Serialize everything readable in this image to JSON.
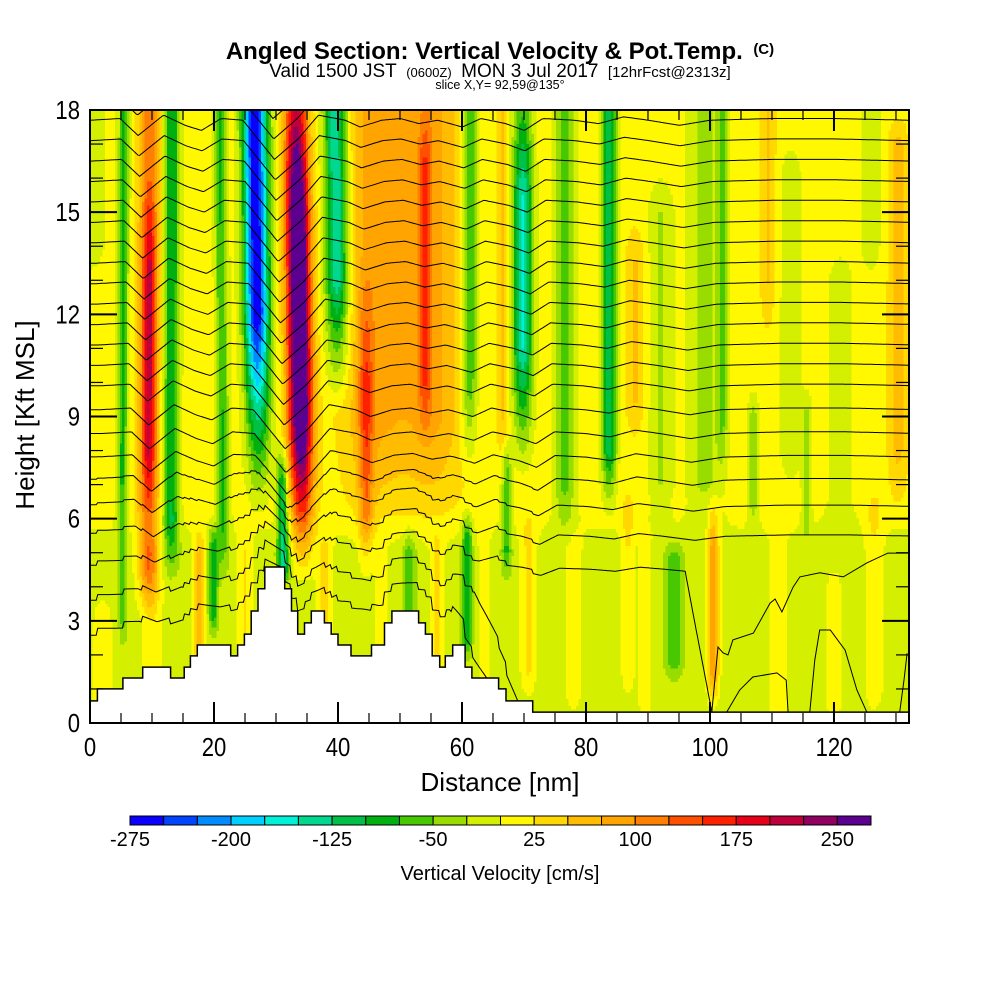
{
  "chart_data": {
    "type": "heatmap",
    "title": "Angled Section: Vertical Velocity & Pot.Temp.",
    "title_mark": "(C)",
    "subtitle": {
      "valid_local": "Valid 1500 JST",
      "valid_utc": "(0600Z)",
      "date": "MON 3 Jul 2017",
      "forecast": "[12hrFcst@2313z]"
    },
    "slice": "slice X,Y= 92,59@135°",
    "xlabel": "Distance [nm]",
    "ylabel": "Height [Kft MSL]",
    "xlim": [
      0,
      132.1
    ],
    "ylim": [
      0,
      18
    ],
    "x_ticks": [
      0,
      20,
      40,
      60,
      80,
      100,
      120
    ],
    "x_tick_labels": [
      "0",
      "20",
      "40",
      "60",
      "80",
      "100",
      "120"
    ],
    "x_minor_tick_step": 5,
    "y_ticks": [
      0,
      3,
      6,
      9,
      12,
      15,
      18
    ],
    "y_tick_labels": [
      "0",
      "3",
      "6",
      "9",
      "12",
      "15",
      "18"
    ],
    "y_minor_tick_step": 1,
    "grid": false,
    "legend": "colorbar bottom",
    "colors": {
      "terrain_fill": "#ffffff",
      "isentrope": "#000000",
      "axes": "#000000"
    },
    "colorbar": {
      "label": "Vertical Velocity [cm/s]",
      "min": -275,
      "max": 275,
      "step": 25,
      "tick_values": [
        -275,
        -200,
        -125,
        -50,
        25,
        100,
        175,
        250
      ],
      "tick_labels": [
        "-275",
        "-200",
        "-125",
        "-50",
        "25",
        "100",
        "175",
        "250"
      ],
      "colors": [
        "#0A00FF",
        "#0044FF",
        "#008CFF",
        "#00D0FF",
        "#00F0D8",
        "#00D890",
        "#00C048",
        "#00B010",
        "#48C800",
        "#98DC00",
        "#D4F000",
        "#FFF800",
        "#FFD800",
        "#FFBC00",
        "#FFA400",
        "#FF8000",
        "#FF5000",
        "#FF2000",
        "#E80018",
        "#C0003C",
        "#900060",
        "#5C0090"
      ]
    },
    "vertical_velocity": {
      "units": "cm/s",
      "background": {
        "upper_cm_s": 14,
        "lower_cm_s": -12,
        "transition_kft": [
          5,
          6.5
        ]
      },
      "feature_fields": [
        "d_top_nm",
        "d_bottom_nm",
        "half_width_nm",
        "peak_cm_s",
        "z_low_kft",
        "z_high_kft",
        "fade_below_kft",
        "fade_above_kft"
      ],
      "features": [
        [
          5.5,
          5.0,
          0.9,
          -95,
          7,
          18,
          2,
          1
        ],
        [
          9.6,
          9.3,
          1.6,
          110,
          4.5,
          18,
          1.5,
          1
        ],
        [
          9.7,
          9.4,
          1.1,
          85,
          8,
          13.5,
          2,
          2.5
        ],
        [
          13.2,
          13.0,
          1.3,
          -115,
          6,
          18,
          2,
          1
        ],
        [
          21.0,
          21.6,
          1.0,
          -90,
          6,
          18,
          2,
          1
        ],
        [
          19.9,
          19.9,
          0.8,
          -80,
          3.2,
          5.2,
          0.8,
          0.8
        ],
        [
          26.6,
          27.6,
          2.0,
          -290,
          12,
          18,
          6,
          1
        ],
        [
          30.0,
          31.6,
          0.9,
          -130,
          4.5,
          7,
          0.5,
          1.5
        ],
        [
          33.2,
          34.7,
          1.9,
          330,
          9,
          15,
          5,
          7
        ],
        [
          39.6,
          40.5,
          1.9,
          -170,
          13,
          18,
          4,
          1
        ],
        [
          46.0,
          46.0,
          5.0,
          70,
          9,
          18,
          4,
          1
        ],
        [
          55.0,
          55.0,
          5.0,
          70,
          9,
          18,
          4,
          1
        ],
        [
          54.0,
          54.0,
          1.0,
          70,
          10,
          16.5,
          2,
          2
        ],
        [
          44.4,
          44.6,
          1.2,
          85,
          6,
          10,
          2,
          4
        ],
        [
          61.3,
          61.0,
          1.3,
          -95,
          10,
          18,
          3,
          1
        ],
        [
          60.8,
          60.8,
          0.8,
          -85,
          2.5,
          5.5,
          0.8,
          1
        ],
        [
          66.5,
          66.5,
          0.8,
          40,
          9,
          18,
          2,
          1
        ],
        [
          69.8,
          69.8,
          1.6,
          -165,
          11,
          15.5,
          4,
          5
        ],
        [
          67.2,
          67.2,
          0.8,
          -70,
          5,
          7.5,
          1,
          1
        ],
        [
          76.6,
          76.6,
          1.8,
          -75,
          7,
          18,
          2,
          1
        ],
        [
          83.7,
          83.7,
          1.2,
          -130,
          8,
          18,
          2,
          1
        ],
        [
          88.0,
          88.0,
          1.5,
          40,
          9.5,
          13.5,
          1.5,
          1.5
        ],
        [
          99.2,
          99.2,
          3.0,
          -45,
          7,
          18,
          2,
          1
        ],
        [
          102.0,
          102.0,
          0.8,
          -60,
          9,
          18,
          2,
          1
        ],
        [
          109.4,
          109.4,
          1.2,
          40,
          13,
          18,
          2,
          1
        ],
        [
          130.3,
          130.3,
          1.5,
          45,
          8,
          17,
          2,
          1
        ],
        [
          92.0,
          92.0,
          2.0,
          -40,
          7,
          15,
          1.5,
          1.5
        ],
        [
          113.0,
          113.0,
          2.0,
          -30,
          8,
          16,
          1.5,
          1.5
        ],
        [
          121.0,
          121.0,
          2.5,
          -25,
          6,
          13,
          1.5,
          1.5
        ],
        [
          126.0,
          126.0,
          2.0,
          -25,
          14,
          18,
          1.5,
          1
        ],
        [
          0.0,
          0.0,
          3.0,
          -25,
          14,
          18,
          1.5,
          1
        ],
        [
          70.7,
          70.7,
          1.2,
          40,
          1.5,
          5.5,
          1,
          1
        ],
        [
          86.8,
          86.8,
          1.0,
          35,
          1.5,
          6,
          1,
          1
        ],
        [
          94.2,
          94.2,
          1.5,
          -55,
          1.8,
          4.8,
          0.8,
          0.8
        ],
        [
          100.5,
          100.5,
          0.9,
          110,
          1.5,
          5,
          1.2,
          2
        ],
        [
          107.0,
          107.0,
          0.9,
          -55,
          6.5,
          9,
          1,
          1
        ],
        [
          115.6,
          115.6,
          0.8,
          -45,
          6,
          9,
          1,
          1
        ],
        [
          17.7,
          17.7,
          0.9,
          70,
          2,
          5,
          1,
          1
        ],
        [
          10.0,
          10.0,
          1.5,
          35,
          1.5,
          5,
          1,
          1
        ],
        [
          5.3,
          5.3,
          0.7,
          -50,
          3,
          5.5,
          1,
          1
        ],
        [
          51.5,
          51.5,
          1.0,
          -55,
          2,
          5,
          1,
          1
        ],
        [
          2.0,
          2.0,
          1.5,
          30,
          0.5,
          3,
          0.5,
          1
        ],
        [
          25.0,
          25.0,
          1.2,
          40,
          1,
          5,
          1,
          1
        ],
        [
          37.9,
          37.9,
          1.2,
          45,
          2.5,
          5,
          1,
          1
        ],
        [
          47.0,
          47.0,
          1.0,
          30,
          1.5,
          5,
          1,
          1
        ],
        [
          56.0,
          56.0,
          1.2,
          40,
          1.5,
          5,
          1,
          1
        ],
        [
          63.5,
          63.5,
          1.0,
          25,
          1,
          5,
          1,
          1
        ],
        [
          78.0,
          78.0,
          1.5,
          28,
          1,
          5,
          1,
          1
        ],
        [
          89.5,
          89.5,
          1.0,
          28,
          0.5,
          5,
          1,
          1
        ],
        [
          111.0,
          111.0,
          1.5,
          28,
          0.5,
          5,
          1,
          1
        ],
        [
          120.0,
          120.0,
          1.5,
          22,
          0.5,
          4,
          1,
          1
        ],
        [
          126.5,
          126.5,
          1.5,
          28,
          1,
          6,
          1,
          1
        ]
      ]
    },
    "isentropes": {
      "displacement_profile": {
        "distance_nm": [
          0,
          4.8,
          7.7,
          11.8,
          15.3,
          17.9,
          21.1,
          24.6,
          29.7,
          33.5,
          36.8,
          41.1,
          43.5,
          47,
          50,
          53,
          56,
          60,
          63,
          67,
          70,
          73,
          78,
          82,
          86,
          90,
          95,
          100,
          110,
          120,
          132.1
        ],
        "dz_kft": [
          0,
          0.05,
          -0.45,
          0.15,
          -0.15,
          -0.3,
          0.05,
          0.0,
          -1.15,
          -0.55,
          0.15,
          0.0,
          -0.2,
          0.0,
          0.05,
          -0.1,
          0.0,
          -0.2,
          0.05,
          -0.1,
          -0.3,
          0.05,
          0.0,
          -0.1,
          0.1,
          0.0,
          -0.15,
          0.0,
          0.05,
          0.05,
          0
        ]
      },
      "tilt_nm_per_kft": 0.2,
      "terrain_following": 0.8,
      "terrain_following_top_kft": 8,
      "lines": [
        {
          "base_kft": 18.9,
          "amplitude": 1
        },
        {
          "base_kft": 18.3,
          "amplitude": 1
        },
        {
          "base_kft": 17.7,
          "amplitude": 1
        },
        {
          "base_kft": 17.1,
          "amplitude": 1
        },
        {
          "base_kft": 16.5,
          "amplitude": 1
        },
        {
          "base_kft": 15.9,
          "amplitude": 1
        },
        {
          "base_kft": 15.3,
          "amplitude": 1
        },
        {
          "base_kft": 14.7,
          "amplitude": 1
        },
        {
          "base_kft": 14.1,
          "amplitude": 1
        },
        {
          "base_kft": 13.5,
          "amplitude": 1
        },
        {
          "base_kft": 12.9,
          "amplitude": 1
        },
        {
          "base_kft": 12.3,
          "amplitude": 1
        },
        {
          "base_kft": 11.7,
          "amplitude": 1
        },
        {
          "base_kft": 11.1,
          "amplitude": 1
        },
        {
          "base_kft": 10.5,
          "amplitude": 1
        },
        {
          "base_kft": 9.9,
          "amplitude": 1
        },
        {
          "base_kft": 9.2,
          "amplitude": 1
        },
        {
          "base_kft": 8.5,
          "amplitude": 1
        },
        {
          "base_kft": 7.8,
          "amplitude": 1
        },
        {
          "base_kft": 7.1,
          "amplitude": 1
        },
        {
          "base_kft": 6.3,
          "amplitude": 0.9
        },
        {
          "base_kft": 5.4,
          "amplitude": 0.8
        },
        {
          "base_kft": 4.4,
          "amplitude": 0.6,
          "descend_nm": [
            96,
            100.3
          ]
        },
        {
          "base_kft": 3.3,
          "amplitude": 0.5,
          "descend_nm": [
            62,
            69
          ]
        },
        {
          "base_kft": 2.2,
          "amplitude": 0.4,
          "descend_nm": [
            58,
            64
          ]
        }
      ],
      "explicit_lines": [
        [
          [
            100.3,
            0.32
          ],
          [
            101.3,
            2.23
          ],
          [
            102.1,
            2.06
          ],
          [
            102.9,
            2.0
          ],
          [
            103.7,
            2.44
          ],
          [
            107.0,
            2.64
          ],
          [
            109.7,
            3.52
          ],
          [
            110.5,
            3.64
          ],
          [
            111.6,
            3.26
          ],
          [
            113.4,
            3.99
          ],
          [
            114.5,
            4.29
          ],
          [
            117.7,
            4.41
          ],
          [
            121.5,
            4.29
          ],
          [
            125.3,
            4.7
          ],
          [
            128.7,
            4.99
          ],
          [
            132.1,
            4.99
          ]
        ],
        [
          [
            102.7,
            0.32
          ],
          [
            104.8,
            0.97
          ],
          [
            106.9,
            1.35
          ],
          [
            110.8,
            1.47
          ],
          [
            112.3,
            1.26
          ],
          [
            112.6,
            0.32
          ]
        ],
        [
          [
            116.1,
            0.32
          ],
          [
            116.9,
            1.85
          ],
          [
            117.7,
            2.73
          ],
          [
            119.4,
            2.73
          ],
          [
            121.8,
            2.14
          ],
          [
            123.7,
            0.97
          ],
          [
            125.3,
            0.32
          ]
        ],
        [
          [
            130.6,
            0.32
          ],
          [
            131.3,
            1.26
          ],
          [
            131.8,
            2.05
          ]
        ]
      ]
    },
    "terrain": {
      "step_start_nm": [
        0,
        1.2,
        5.3,
        8.5,
        13.0,
        15.2,
        16.2,
        17.3,
        22.7,
        23.8,
        24.9,
        26.0,
        27.1,
        28.2,
        31.4,
        32.5,
        33.5,
        34.6,
        35.7,
        37.8,
        38.9,
        40.0,
        42.1,
        45.4,
        47.5,
        48.7,
        53.0,
        54.1,
        55.2,
        56.4,
        57.3,
        58.5,
        60.5,
        61.6,
        65.9,
        67.1,
        71.4
      ],
      "height_kft": [
        0.65,
        1.0,
        1.32,
        1.64,
        1.32,
        1.64,
        1.97,
        2.29,
        1.97,
        2.29,
        2.61,
        3.29,
        3.94,
        4.58,
        3.94,
        3.29,
        2.61,
        2.94,
        3.29,
        2.94,
        2.61,
        2.29,
        1.97,
        2.29,
        2.94,
        3.29,
        2.94,
        2.61,
        1.97,
        1.64,
        1.97,
        2.29,
        1.64,
        1.32,
        1.0,
        0.65,
        0.32
      ]
    }
  }
}
